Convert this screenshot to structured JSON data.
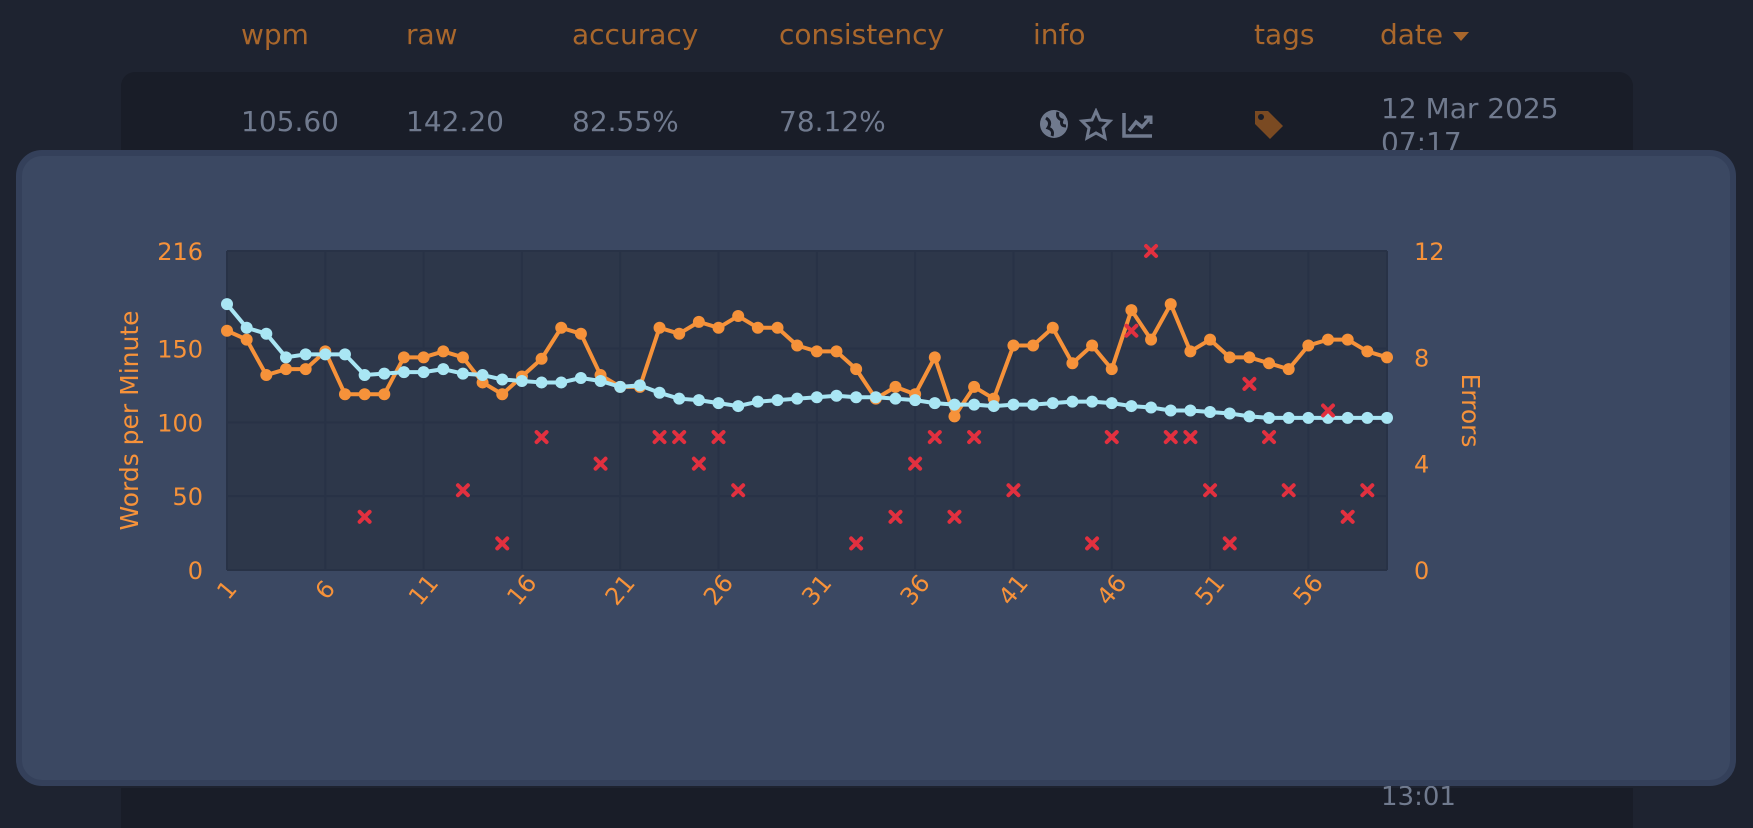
{
  "table": {
    "headers": {
      "wpm": "wpm",
      "raw": "raw",
      "accuracy": "accuracy",
      "consistency": "consistency",
      "info": "info",
      "tags": "tags",
      "date": "date"
    },
    "row": {
      "wpm": "105.60",
      "raw": "142.20",
      "accuracy": "82.55%",
      "consistency": "78.12%",
      "date_line1": "12 Mar 2025",
      "date_line2": "07:17"
    },
    "next_row_time": "13:01"
  },
  "colors": {
    "wpm": "#f6923a",
    "raw": "#a9e6f4",
    "errors": "#e2303f",
    "axis_text": "#f6923a",
    "grid": "#283246",
    "plot_bg": "#2d374a"
  },
  "chart_data": {
    "type": "line",
    "ylabel": "Words per Minute",
    "y2label": "Errors",
    "ylim": [
      0,
      216
    ],
    "y2lim": [
      0,
      12
    ],
    "yticks": [
      0,
      50,
      100,
      150,
      216
    ],
    "y2ticks": [
      0,
      4,
      8,
      12
    ],
    "xticks": [
      1,
      6,
      11,
      16,
      21,
      26,
      31,
      36,
      41,
      46,
      51,
      56
    ],
    "x": [
      1,
      2,
      3,
      4,
      5,
      6,
      7,
      8,
      9,
      10,
      11,
      12,
      13,
      14,
      15,
      16,
      17,
      18,
      19,
      20,
      21,
      22,
      23,
      24,
      25,
      26,
      27,
      28,
      29,
      30,
      31,
      32,
      33,
      34,
      35,
      36,
      37,
      38,
      39,
      40,
      41,
      42,
      43,
      44,
      45,
      46,
      47,
      48,
      49,
      50,
      51,
      52,
      53,
      54,
      55,
      56,
      57,
      58,
      59,
      60
    ],
    "series": [
      {
        "name": "wpm",
        "axis": "left",
        "values": [
          162,
          156,
          132,
          136,
          136,
          148,
          119,
          119,
          119,
          144,
          144,
          148,
          144,
          127,
          119,
          131,
          143,
          164,
          160,
          132,
          124,
          124,
          164,
          160,
          168,
          164,
          172,
          164,
          164,
          152,
          148,
          148,
          136,
          116,
          124,
          119,
          144,
          104,
          124,
          116,
          152,
          152,
          164,
          140,
          152,
          136,
          176,
          156,
          180,
          148,
          156,
          144,
          144,
          140,
          136,
          152,
          156,
          156,
          148,
          144
        ]
      },
      {
        "name": "raw",
        "axis": "left",
        "values": [
          180,
          164,
          160,
          144,
          146,
          146,
          146,
          132,
          133,
          134,
          134,
          136,
          133,
          132,
          129,
          128,
          127,
          127,
          130,
          128,
          124,
          125,
          120,
          116,
          115,
          113,
          111,
          114,
          115,
          116,
          117,
          118,
          117,
          117,
          116,
          115,
          113,
          112,
          112,
          111,
          112,
          112,
          113,
          114,
          114,
          113,
          111,
          110,
          108,
          108,
          107,
          106,
          104,
          103,
          103,
          103,
          103,
          103,
          103,
          103
        ]
      },
      {
        "name": "errors",
        "axis": "right",
        "type": "scatter",
        "values": [
          null,
          null,
          null,
          null,
          null,
          null,
          null,
          2,
          null,
          null,
          null,
          null,
          3,
          null,
          1,
          null,
          5,
          null,
          null,
          4,
          null,
          null,
          5,
          5,
          4,
          5,
          3,
          null,
          null,
          null,
          null,
          null,
          1,
          null,
          2,
          4,
          5,
          2,
          5,
          null,
          3,
          null,
          null,
          null,
          1,
          5,
          9,
          12,
          5,
          5,
          3,
          1,
          7,
          5,
          3,
          null,
          6,
          2,
          3,
          null
        ]
      }
    ]
  }
}
